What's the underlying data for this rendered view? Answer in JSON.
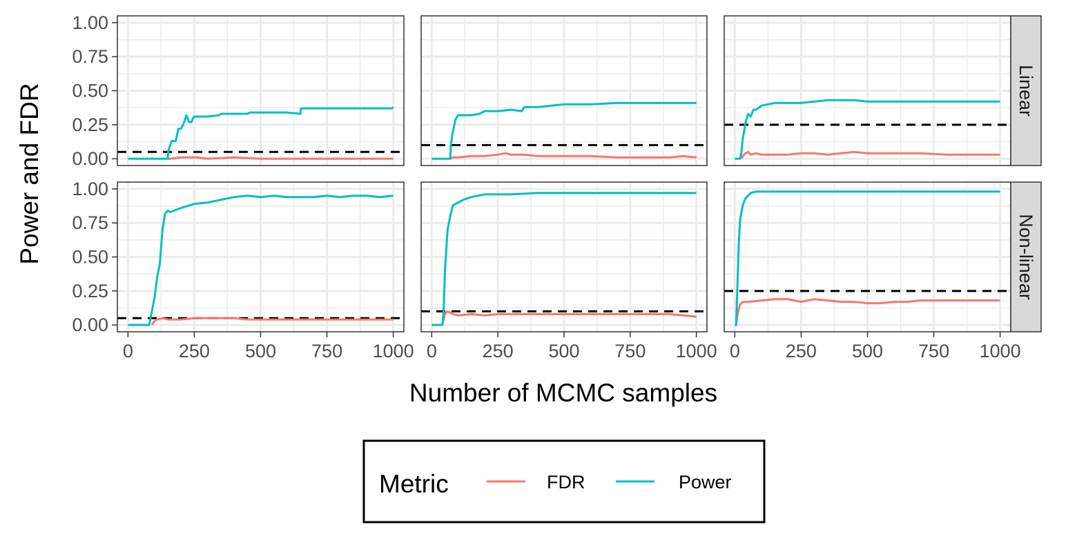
{
  "chart_data": {
    "type": "line",
    "xlabel": "Number of MCMC samples",
    "ylabel": "Power and FDR",
    "x_ticks": [
      "0",
      "250",
      "500",
      "750",
      "1000"
    ],
    "y_ticks": [
      "0.00",
      "0.25",
      "0.50",
      "0.75",
      "1.00"
    ],
    "xlim": [
      -40,
      1040
    ],
    "ylim": [
      -0.05,
      1.05
    ],
    "grid": true,
    "legend": {
      "title": "Metric",
      "placement": "bottom",
      "entries": [
        {
          "label": "FDR",
          "color": "#F8766D"
        },
        {
          "label": "Power",
          "color": "#00BFC4"
        }
      ]
    },
    "rows": [
      "Linear",
      "Non-linear"
    ],
    "panels": [
      {
        "row": "Linear",
        "col": 1,
        "threshold": 0.05,
        "series": [
          {
            "name": "FDR",
            "x": [
              150,
              160,
              200,
              230,
              260,
              300,
              400,
              500,
              600,
              700,
              800,
              1000
            ],
            "y": [
              0,
              0,
              0.01,
              0.01,
              0.01,
              0.0,
              0.01,
              0.0,
              0.0,
              0.0,
              0.0,
              0.0
            ]
          },
          {
            "name": "Power",
            "x": [
              0,
              150,
              152,
              165,
              180,
              190,
              200,
              210,
              220,
              230,
              240,
              245,
              250,
              300,
              345,
              350,
              400,
              450,
              460,
              500,
              550,
              600,
              650,
              652,
              700,
              800,
              900,
              995,
              1000
            ],
            "y": [
              0,
              0,
              0.06,
              0.13,
              0.13,
              0.22,
              0.22,
              0.26,
              0.32,
              0.27,
              0.27,
              0.3,
              0.31,
              0.31,
              0.32,
              0.33,
              0.33,
              0.33,
              0.34,
              0.34,
              0.34,
              0.34,
              0.33,
              0.37,
              0.37,
              0.37,
              0.37,
              0.37,
              0.38
            ]
          }
        ]
      },
      {
        "row": "Linear",
        "col": 2,
        "threshold": 0.1,
        "series": [
          {
            "name": "FDR",
            "x": [
              70,
              80,
              100,
              150,
              200,
              250,
              280,
              300,
              350,
              400,
              450,
              500,
              600,
              700,
              800,
              900,
              950,
              1000
            ],
            "y": [
              0,
              0.01,
              0.01,
              0.02,
              0.02,
              0.03,
              0.04,
              0.03,
              0.03,
              0.02,
              0.02,
              0.02,
              0.02,
              0.01,
              0.01,
              0.01,
              0.02,
              0.01
            ]
          },
          {
            "name": "Power",
            "x": [
              0,
              70,
              72,
              80,
              90,
              100,
              150,
              180,
              200,
              250,
              300,
              340,
              350,
              400,
              450,
              500,
              600,
              700,
              800,
              900,
              1000
            ],
            "y": [
              0,
              0,
              0.1,
              0.2,
              0.29,
              0.32,
              0.32,
              0.33,
              0.35,
              0.35,
              0.36,
              0.35,
              0.38,
              0.38,
              0.39,
              0.4,
              0.4,
              0.41,
              0.41,
              0.41,
              0.41
            ]
          }
        ]
      },
      {
        "row": "Linear",
        "col": 3,
        "threshold": 0.25,
        "series": [
          {
            "name": "FDR",
            "x": [
              25,
              30,
              40,
              50,
              60,
              80,
              100,
              150,
              200,
              250,
              300,
              350,
              400,
              450,
              500,
              600,
              700,
              800,
              900,
              1000
            ],
            "y": [
              0,
              0.02,
              0.04,
              0.05,
              0.03,
              0.04,
              0.03,
              0.03,
              0.03,
              0.04,
              0.04,
              0.03,
              0.04,
              0.05,
              0.04,
              0.04,
              0.04,
              0.03,
              0.03,
              0.03
            ]
          },
          {
            "name": "Power",
            "x": [
              0,
              20,
              25,
              30,
              35,
              40,
              50,
              60,
              70,
              80,
              100,
              150,
              200,
              250,
              300,
              350,
              400,
              450,
              500,
              600,
              700,
              800,
              900,
              1000
            ],
            "y": [
              0,
              0,
              0.05,
              0.15,
              0.2,
              0.26,
              0.33,
              0.31,
              0.36,
              0.36,
              0.39,
              0.41,
              0.41,
              0.41,
              0.42,
              0.43,
              0.43,
              0.43,
              0.42,
              0.42,
              0.42,
              0.42,
              0.42,
              0.42
            ]
          }
        ]
      },
      {
        "row": "Non-linear",
        "col": 1,
        "threshold": 0.05,
        "series": [
          {
            "name": "FDR",
            "x": [
              90,
              100,
              110,
              130,
              150,
              200,
              250,
              300,
              350,
              400,
              450,
              500,
              600,
              700,
              800,
              900,
              1000
            ],
            "y": [
              0,
              0.03,
              0.04,
              0.05,
              0.04,
              0.04,
              0.05,
              0.05,
              0.05,
              0.05,
              0.04,
              0.04,
              0.04,
              0.04,
              0.04,
              0.04,
              0.04
            ]
          },
          {
            "name": "Power",
            "x": [
              0,
              80,
              90,
              100,
              110,
              120,
              130,
              140,
              150,
              160,
              200,
              250,
              300,
              350,
              400,
              450,
              500,
              550,
              600,
              650,
              700,
              750,
              800,
              850,
              900,
              950,
              1000
            ],
            "y": [
              0,
              0,
              0.1,
              0.2,
              0.35,
              0.45,
              0.7,
              0.82,
              0.84,
              0.83,
              0.86,
              0.89,
              0.9,
              0.92,
              0.94,
              0.95,
              0.94,
              0.95,
              0.94,
              0.94,
              0.94,
              0.95,
              0.94,
              0.95,
              0.95,
              0.94,
              0.95
            ]
          }
        ]
      },
      {
        "row": "Non-linear",
        "col": 2,
        "threshold": 0.1,
        "series": [
          {
            "name": "FDR",
            "x": [
              40,
              50,
              60,
              80,
              100,
              150,
              200,
              250,
              300,
              400,
              500,
              600,
              700,
              800,
              900,
              950,
              1000
            ],
            "y": [
              0,
              0.08,
              0.1,
              0.08,
              0.07,
              0.08,
              0.07,
              0.08,
              0.08,
              0.08,
              0.08,
              0.08,
              0.08,
              0.08,
              0.08,
              0.07,
              0.06
            ]
          },
          {
            "name": "Power",
            "x": [
              0,
              40,
              45,
              50,
              60,
              70,
              80,
              100,
              120,
              150,
              200,
              250,
              300,
              400,
              500,
              600,
              700,
              800,
              900,
              1000
            ],
            "y": [
              0,
              0,
              0.1,
              0.4,
              0.7,
              0.8,
              0.88,
              0.9,
              0.92,
              0.94,
              0.96,
              0.96,
              0.96,
              0.97,
              0.97,
              0.97,
              0.97,
              0.97,
              0.97,
              0.97
            ]
          }
        ]
      },
      {
        "row": "Non-linear",
        "col": 3,
        "threshold": 0.25,
        "series": [
          {
            "name": "FDR",
            "x": [
              5,
              10,
              15,
              20,
              30,
              50,
              100,
              150,
              200,
              250,
              300,
              350,
              400,
              450,
              500,
              550,
              600,
              650,
              700,
              800,
              900,
              1000
            ],
            "y": [
              0,
              0.07,
              0.12,
              0.15,
              0.17,
              0.17,
              0.18,
              0.19,
              0.19,
              0.17,
              0.19,
              0.18,
              0.17,
              0.17,
              0.16,
              0.16,
              0.17,
              0.17,
              0.18,
              0.18,
              0.18,
              0.18
            ]
          },
          {
            "name": "Power",
            "x": [
              0,
              5,
              10,
              15,
              20,
              30,
              40,
              50,
              60,
              80,
              100,
              200,
              300,
              500,
              700,
              900,
              1000
            ],
            "y": [
              0,
              0,
              0.3,
              0.6,
              0.78,
              0.88,
              0.93,
              0.95,
              0.97,
              0.98,
              0.98,
              0.98,
              0.98,
              0.98,
              0.98,
              0.98,
              0.98
            ]
          }
        ]
      }
    ]
  }
}
